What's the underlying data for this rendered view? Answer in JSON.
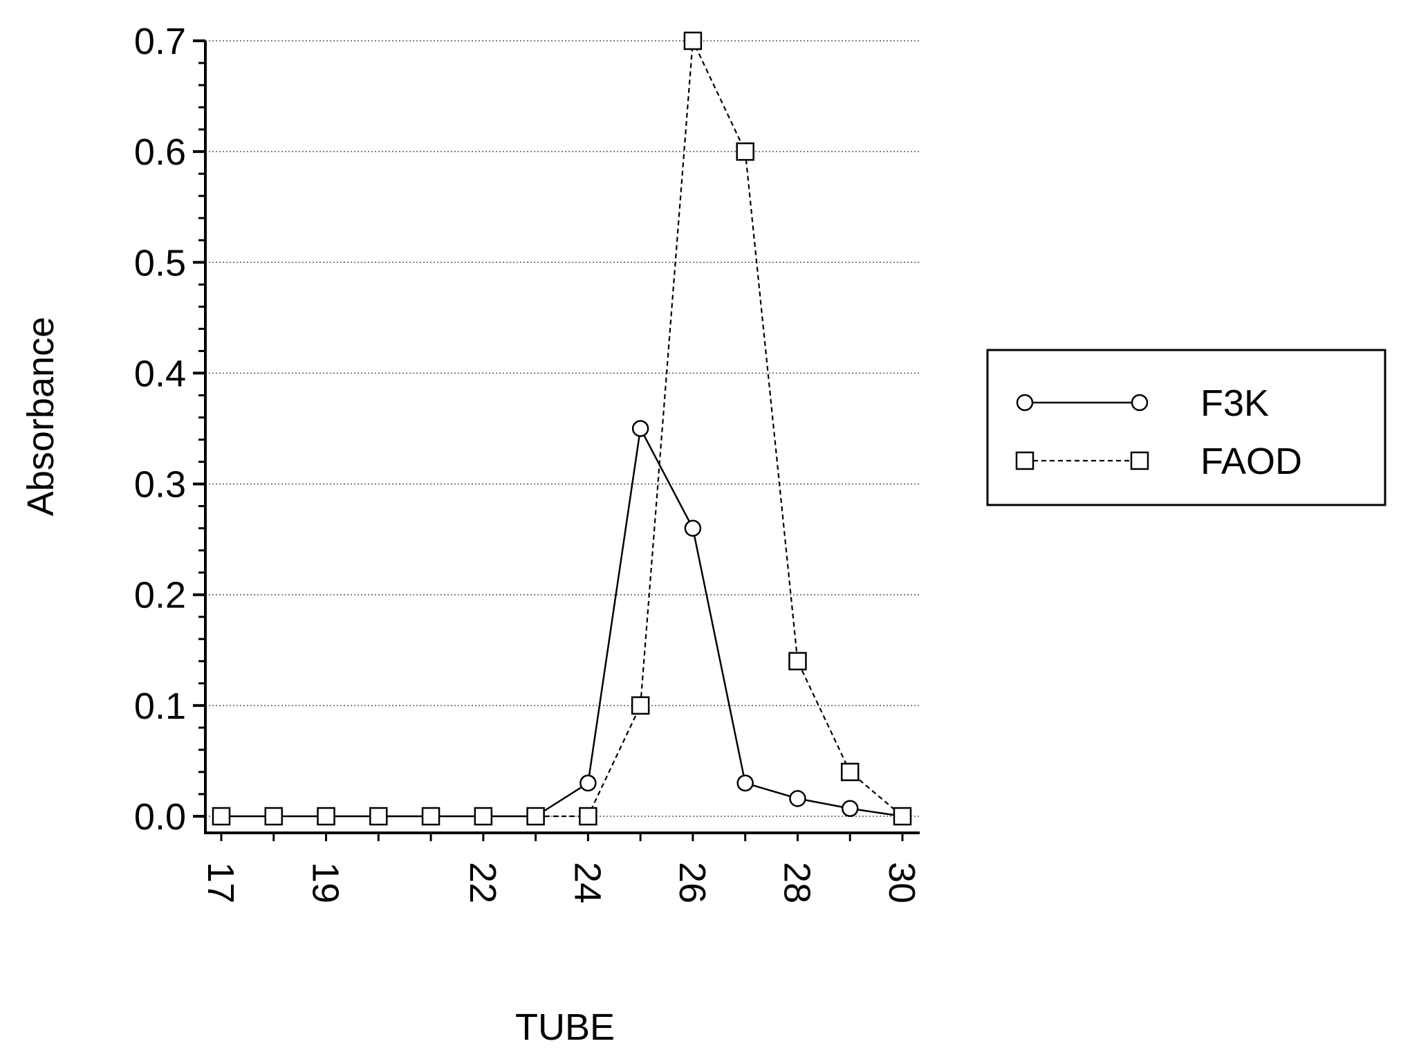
{
  "chart_data": {
    "type": "line",
    "xlabel": "TUBE",
    "ylabel": "Absorbance",
    "xlim": [
      17,
      30
    ],
    "ylim": [
      0,
      0.7
    ],
    "x_ticks": [
      "17",
      "19",
      "22",
      "24",
      "26",
      "28",
      "30"
    ],
    "y_ticks": [
      "0.0",
      "0.1",
      "0.2",
      "0.3",
      "0.4",
      "0.5",
      "0.6",
      "0.7"
    ],
    "grid": "horizontal dotted",
    "legend_position": "right",
    "series": [
      {
        "name": "F3K",
        "marker": "circle",
        "line": "solid",
        "x": [
          17,
          18,
          19,
          20,
          21,
          22,
          23,
          24,
          25,
          26,
          27,
          28,
          29,
          30
        ],
        "values": [
          0,
          0,
          0,
          0,
          0,
          0,
          0,
          0.03,
          0.35,
          0.26,
          0.03,
          0.016,
          0.007,
          0
        ]
      },
      {
        "name": "FAOD",
        "marker": "square",
        "line": "dashed",
        "x": [
          17,
          18,
          19,
          20,
          21,
          22,
          23,
          24,
          25,
          26,
          27,
          28,
          29,
          30
        ],
        "values": [
          0,
          0,
          0,
          0,
          0,
          0,
          0,
          0,
          0.1,
          0.7,
          0.6,
          0.14,
          0.04,
          0
        ]
      }
    ]
  }
}
